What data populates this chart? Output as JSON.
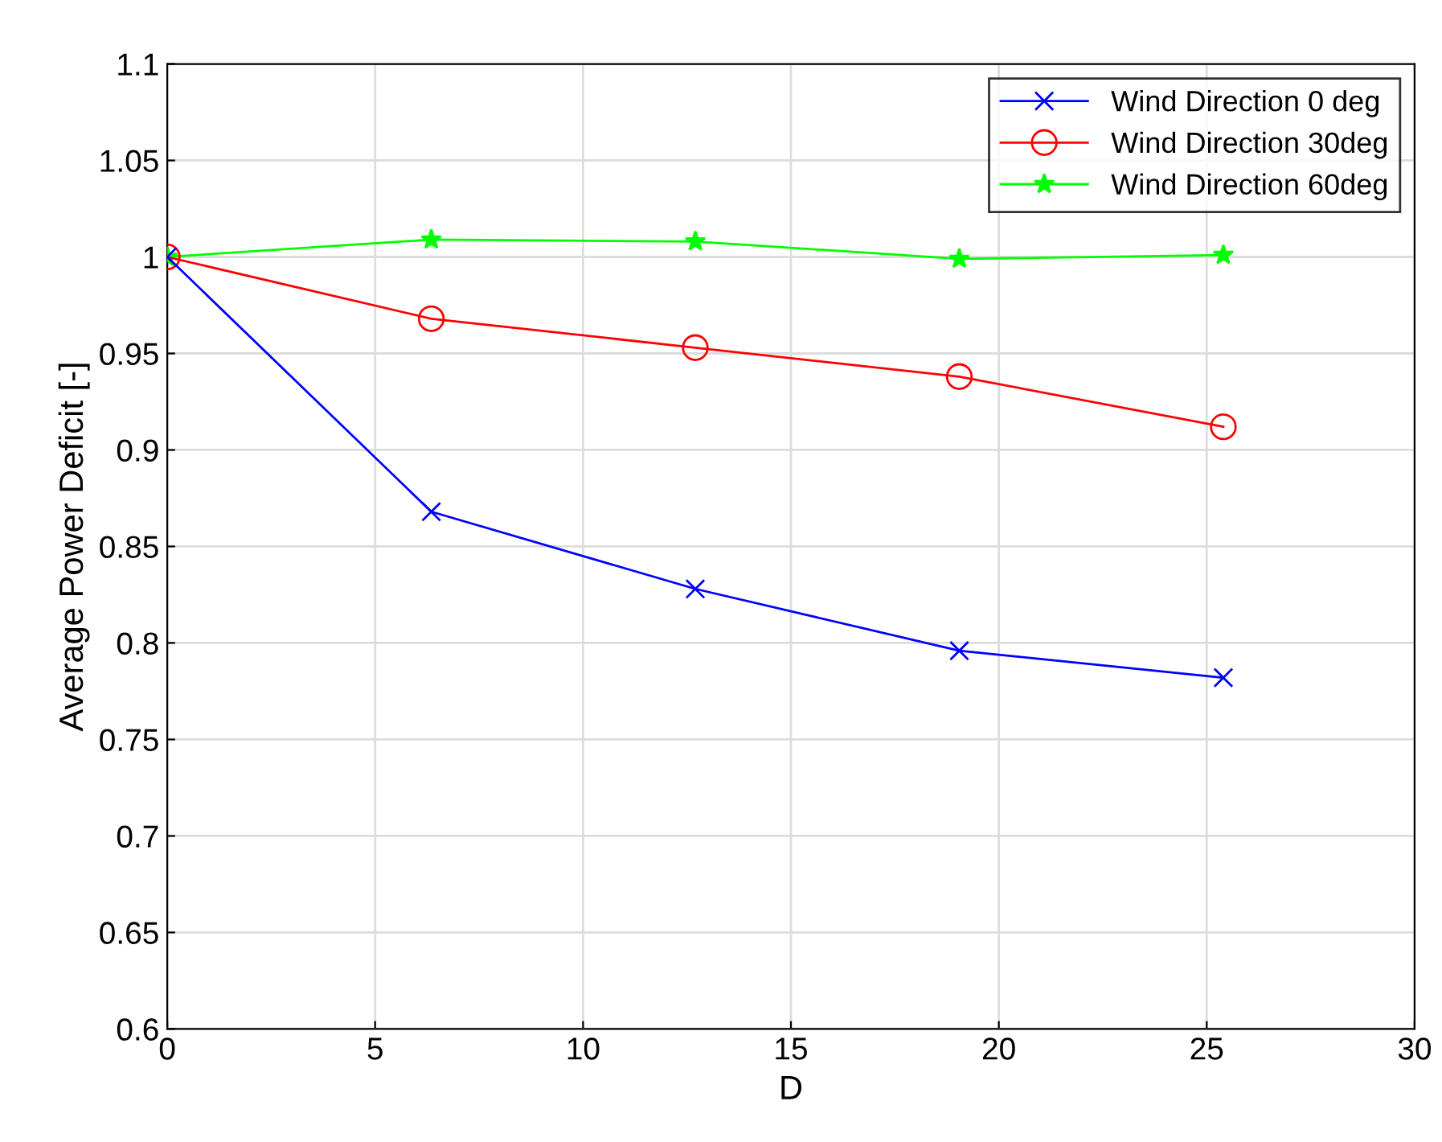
{
  "chart_data": {
    "type": "line",
    "xlabel": "D",
    "ylabel": "Average Power Deficit [-]",
    "x": [
      0,
      6.35,
      12.7,
      19.05,
      25.4
    ],
    "series": [
      {
        "name": "Wind Direction 0 deg",
        "color": "#0000ff",
        "marker": "cross",
        "values": [
          1,
          0.868,
          0.828,
          0.796,
          0.782
        ]
      },
      {
        "name": "Wind Direction 30deg",
        "color": "#ff0000",
        "marker": "circle",
        "values": [
          1,
          0.968,
          0.953,
          0.938,
          0.912
        ]
      },
      {
        "name": "Wind Direction 60deg",
        "color": "#00ff00",
        "marker": "star",
        "values": [
          1,
          1.009,
          1.008,
          0.999,
          1.001
        ]
      }
    ],
    "xlim": [
      0,
      30
    ],
    "xticks": [
      0,
      5,
      10,
      15,
      20,
      25,
      30
    ],
    "ylim": [
      0.6,
      1.1
    ],
    "yticks": [
      0.6,
      0.65,
      0.7,
      0.75,
      0.8,
      0.85,
      0.9,
      0.95,
      1,
      1.05,
      1.1
    ],
    "grid": true,
    "legend": "top right",
    "line_style": "solid"
  }
}
